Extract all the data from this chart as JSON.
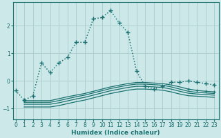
{
  "xlabel": "Humidex (Indice chaleur)",
  "bg_color": "#cce8e8",
  "grid_color": "#aacccc",
  "line_color": "#1a7070",
  "x_ticks": [
    0,
    1,
    2,
    3,
    4,
    5,
    6,
    7,
    8,
    9,
    10,
    11,
    12,
    13,
    14,
    15,
    16,
    17,
    18,
    19,
    20,
    21,
    22,
    23
  ],
  "y_ticks": [
    -1,
    0,
    1,
    2
  ],
  "ylim": [
    -1.4,
    2.85
  ],
  "xlim": [
    -0.3,
    23.5
  ],
  "series": [
    {
      "x": [
        0,
        1,
        2,
        3,
        4,
        5,
        6,
        7,
        8,
        9,
        10,
        11,
        12,
        13,
        14,
        15,
        16,
        17,
        18,
        19,
        20,
        21,
        22,
        23
      ],
      "y": [
        -0.35,
        -0.7,
        -0.55,
        0.65,
        0.3,
        0.65,
        0.85,
        1.4,
        1.4,
        2.25,
        2.3,
        2.55,
        2.1,
        1.75,
        0.35,
        -0.2,
        -0.3,
        -0.2,
        -0.05,
        -0.05,
        0.0,
        -0.05,
        -0.1,
        -0.15
      ],
      "linestyle": "dotted",
      "linewidth": 1.1,
      "marker": "+",
      "markersize": 4,
      "markeredgewidth": 1.0
    },
    {
      "x": [
        1,
        2,
        3,
        4,
        5,
        6,
        7,
        8,
        9,
        10,
        11,
        12,
        13,
        14,
        15,
        16,
        17,
        18,
        19,
        20,
        21,
        22,
        23
      ],
      "y": [
        -0.72,
        -0.72,
        -0.72,
        -0.72,
        -0.65,
        -0.58,
        -0.52,
        -0.46,
        -0.38,
        -0.3,
        -0.22,
        -0.16,
        -0.1,
        -0.06,
        -0.06,
        -0.08,
        -0.1,
        -0.15,
        -0.22,
        -0.3,
        -0.35,
        -0.38,
        -0.4
      ],
      "linestyle": "-",
      "linewidth": 0.9,
      "marker": "+",
      "markersize": 3.5,
      "markeredgewidth": 0.9,
      "markevery": [
        0,
        19,
        20,
        21,
        22
      ]
    },
    {
      "x": [
        1,
        2,
        3,
        4,
        5,
        6,
        7,
        8,
        9,
        10,
        11,
        12,
        13,
        14,
        15,
        16,
        17,
        18,
        19,
        20,
        21,
        22,
        23
      ],
      "y": [
        -0.78,
        -0.78,
        -0.78,
        -0.78,
        -0.72,
        -0.65,
        -0.58,
        -0.52,
        -0.44,
        -0.36,
        -0.28,
        -0.22,
        -0.16,
        -0.12,
        -0.12,
        -0.14,
        -0.16,
        -0.22,
        -0.3,
        -0.38,
        -0.42,
        -0.44,
        -0.46
      ],
      "linestyle": "-",
      "linewidth": 0.9,
      "marker": null,
      "markersize": 0
    },
    {
      "x": [
        1,
        2,
        3,
        4,
        5,
        6,
        7,
        8,
        9,
        10,
        11,
        12,
        13,
        14,
        15,
        16,
        17,
        18,
        19,
        20,
        21,
        22,
        23
      ],
      "y": [
        -0.85,
        -0.85,
        -0.85,
        -0.85,
        -0.8,
        -0.73,
        -0.66,
        -0.6,
        -0.52,
        -0.44,
        -0.36,
        -0.3,
        -0.24,
        -0.2,
        -0.2,
        -0.22,
        -0.24,
        -0.3,
        -0.38,
        -0.45,
        -0.48,
        -0.5,
        -0.52
      ],
      "linestyle": "-",
      "linewidth": 0.9,
      "marker": null,
      "markersize": 0
    },
    {
      "x": [
        1,
        2,
        3,
        4,
        5,
        6,
        7,
        8,
        9,
        10,
        11,
        12,
        13,
        14,
        15,
        16,
        17,
        18,
        19,
        20,
        21,
        22,
        23
      ],
      "y": [
        -0.95,
        -0.95,
        -0.95,
        -0.95,
        -0.9,
        -0.83,
        -0.76,
        -0.7,
        -0.62,
        -0.54,
        -0.46,
        -0.4,
        -0.34,
        -0.3,
        -0.3,
        -0.32,
        -0.34,
        -0.4,
        -0.48,
        -0.54,
        -0.56,
        -0.58,
        -0.6
      ],
      "linestyle": "-",
      "linewidth": 0.9,
      "marker": null,
      "markersize": 0
    }
  ]
}
